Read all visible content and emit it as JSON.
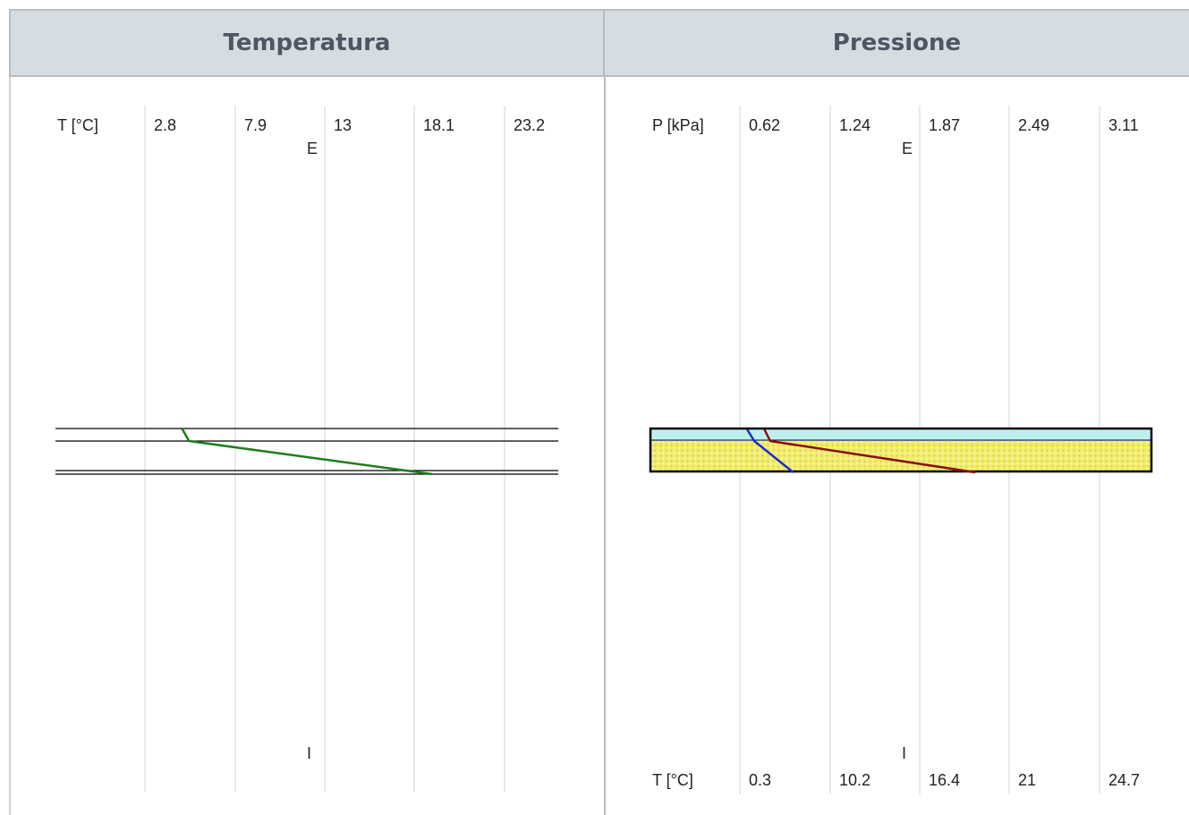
{
  "headers": {
    "left": "Temperatura",
    "right": "Pressione"
  },
  "chart_data": [
    {
      "type": "line",
      "title": "Temperatura",
      "axis_label": "T [°C]",
      "ticks": [
        "2.8",
        "7.9",
        "13",
        "18.1",
        "23.2"
      ],
      "tick_values": [
        2.8,
        7.9,
        13,
        18.1,
        23.2
      ],
      "side_labels": {
        "top": "E",
        "bottom": "I"
      },
      "layer_boundaries": [
        "outer",
        "layer-1",
        "layer-2",
        "inner"
      ],
      "series": [
        {
          "color": "#1e7d1e",
          "points": [
            {
              "t": 4.9,
              "boundary": 0
            },
            {
              "t": 5.3,
              "boundary": 1
            },
            {
              "t": 19.1,
              "boundary": 3
            }
          ]
        }
      ],
      "grid": true
    },
    {
      "type": "line",
      "title": "Pressione",
      "axis_label_top": "P [kPa]",
      "ticks_top": [
        "0.62",
        "1.24",
        "1.87",
        "2.49",
        "3.11"
      ],
      "tick_values_top": [
        0.62,
        1.24,
        1.87,
        2.49,
        3.11
      ],
      "axis_label_bottom": "T [°C]",
      "ticks_bottom": [
        "0.3",
        "10.2",
        "16.4",
        "21",
        "24.7"
      ],
      "side_labels": {
        "top": "E",
        "bottom": "I"
      },
      "layers": [
        {
          "kind": "air-gap",
          "color": "#bff0f0"
        },
        {
          "kind": "insulation",
          "color": "#f2ec6b"
        }
      ],
      "series": [
        {
          "name": "",
          "color": "#1a2fd0",
          "points": [
            {
              "p": 0.67,
              "boundary": 0
            },
            {
              "p": 0.72,
              "boundary": 1
            },
            {
              "p": 0.99,
              "boundary": 3
            }
          ]
        },
        {
          "name": "",
          "color": "#8a1010",
          "points": [
            {
              "p": 0.79,
              "boundary": 0
            },
            {
              "p": 0.83,
              "boundary": 1
            },
            {
              "p": 2.25,
              "boundary": 3
            }
          ]
        }
      ],
      "grid": true
    }
  ]
}
